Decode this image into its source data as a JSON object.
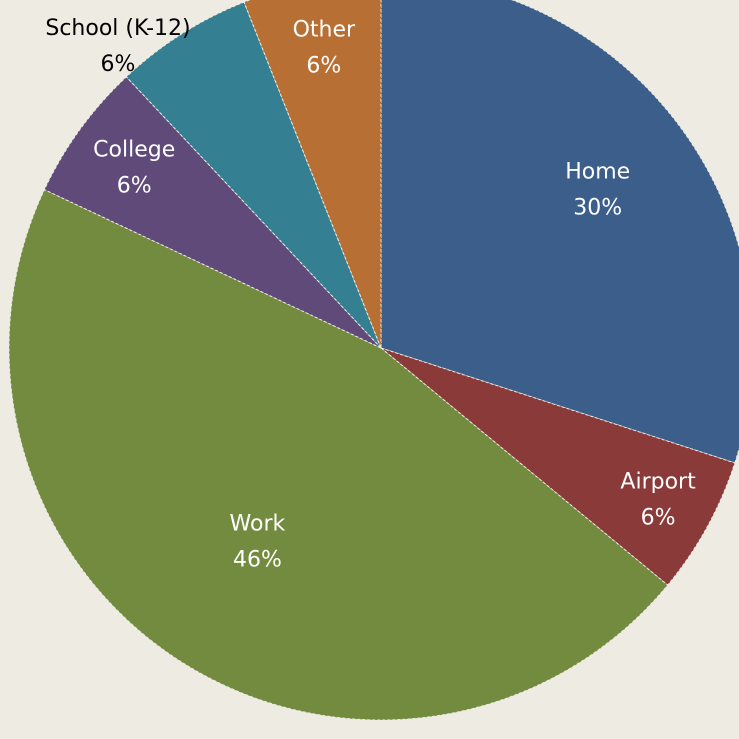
{
  "chart_data": {
    "type": "pie",
    "categories": [
      "Home",
      "Airport",
      "Work",
      "College",
      "School (K-12)",
      "Other"
    ],
    "values": [
      30,
      6,
      46,
      6,
      6,
      6
    ],
    "value_labels": [
      "30%",
      "6%",
      "46%",
      "6%",
      "6%",
      "6%"
    ],
    "colors": [
      "#3b5e8b",
      "#8b3a3a",
      "#728b3f",
      "#5f4a7a",
      "#357f92",
      "#b86f34"
    ],
    "label_colors": [
      "#ffffff",
      "#ffffff",
      "#ffffff",
      "#ffffff",
      "#000000",
      "#ffffff"
    ]
  }
}
